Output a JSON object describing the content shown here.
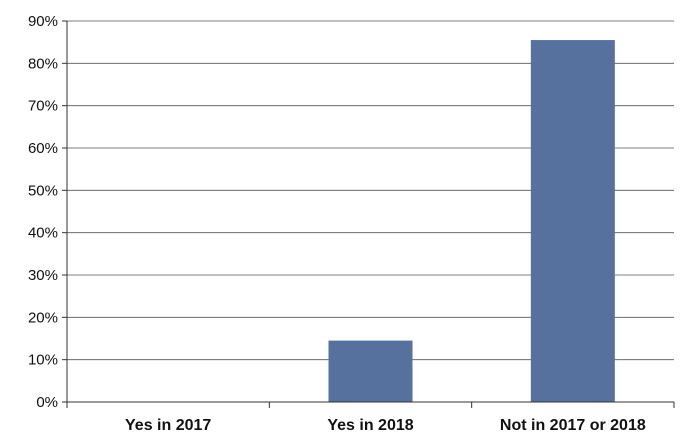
{
  "chart_data": {
    "type": "bar",
    "categories": [
      "Yes in 2017",
      "Yes in 2018",
      "Not in 2017 or 2018"
    ],
    "values": [
      0,
      14.5,
      85.5
    ],
    "value_unit": "%",
    "ylim": [
      0,
      90
    ],
    "y_ticks": [
      "0%",
      "10%",
      "20%",
      "30%",
      "40%",
      "50%",
      "60%",
      "70%",
      "80%",
      "90%"
    ],
    "grid": true,
    "legend": "none",
    "title": "",
    "xlabel": "",
    "ylabel": "",
    "colors": {
      "bar": "#57719f",
      "grid": "#555555"
    }
  }
}
